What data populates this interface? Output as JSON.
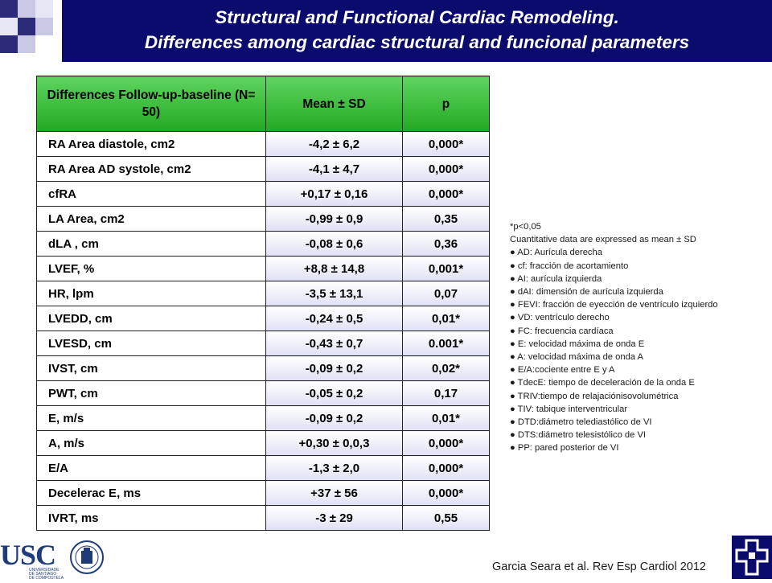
{
  "title": {
    "line1": "Structural and Functional Cardiac Remodeling.",
    "line2": "Differences among cardiac structural and funcional parameters"
  },
  "table": {
    "headers": [
      "Differences Follow-up-baseline (N= 50)",
      "Mean ± SD",
      "p"
    ],
    "rows": [
      [
        "RA Area diastole, cm2",
        "-4,2 ± 6,2",
        "0,000*"
      ],
      [
        "RA Area AD systole, cm2",
        "-4,1 ± 4,7",
        "0,000*"
      ],
      [
        "cfRA",
        "+0,17 ± 0,16",
        "0,000*"
      ],
      [
        "LA Area, cm2",
        "-0,99 ± 0,9",
        "0,35"
      ],
      [
        "dLA , cm",
        "-0,08 ± 0,6",
        "0,36"
      ],
      [
        "LVEF, %",
        "+8,8 ± 14,8",
        "0,001*"
      ],
      [
        "HR, lpm",
        "-3,5 ± 13,1",
        "0,07"
      ],
      [
        "LVEDD, cm",
        "-0,24 ± 0,5",
        "0,01*"
      ],
      [
        "LVESD, cm",
        "-0,43 ± 0,7",
        "0.001*"
      ],
      [
        "IVST, cm",
        "-0,09 ± 0,2",
        "0,02*"
      ],
      [
        "PWT, cm",
        "-0,05 ± 0,2",
        "0,17"
      ],
      [
        "E, m/s",
        "-0,09 ± 0,2",
        "0,01*"
      ],
      [
        "A, m/s",
        "+0,30 ± 0,0,3",
        "0,000*"
      ],
      [
        "E/A",
        "-1,3 ± 2,0",
        "0,000*"
      ],
      [
        "Decelerac E, ms",
        "+37 ± 56",
        "0,000*"
      ],
      [
        "IVRT, ms",
        "-3 ± 29",
        "0,55"
      ]
    ]
  },
  "notes": [
    "*p<0,05",
    "Cuantitative data are expressed as mean ± SD",
    "● AD: Aurícula derecha",
    "● cf: fracción de acortamiento",
    "● AI: aurícula izquierda",
    "● dAI: dimensión de aurícula izquierda",
    "● FEVI: fracción de eyección de ventrículo izquierdo",
    "● VD: ventrículo derecho",
    "● FC: frecuencia cardíaca",
    "● E: velocidad máxima de onda E",
    "● A: velocidad máxima de onda A",
    "● E/A:cociente entre E y A",
    "● TdecE: tiempo de deceleración de la onda E",
    "● TRIV:tiempo de relajaciónisovolumétrica",
    "● TIV: tabique interventricular",
    "● DTD:diámetro telediastólico de VI",
    "● DTS:diámetro telesistólico de VI",
    "● PP: pared posterior de VI"
  ],
  "logo": {
    "text": "USC",
    "sub1": "UNIVERSIDADE",
    "sub2": "DE SANTIAGO",
    "sub3": "DE COMPOSTELA"
  },
  "citation": "Garcia Seara et al. Rev Esp Cardiol 2012",
  "colors": {
    "title_bg": "#0b0b6e",
    "header_green": "#22a822",
    "cell_tint": "#dfe0f4"
  }
}
